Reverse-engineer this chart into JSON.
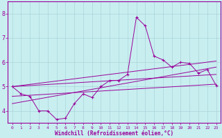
{
  "xlabel": "Windchill (Refroidissement éolien,°C)",
  "background_color": "#c8eef0",
  "grid_color": "#aad4d8",
  "line_color": "#990099",
  "xlim": [
    -0.5,
    23.5
  ],
  "ylim": [
    3.5,
    8.5
  ],
  "yticks": [
    4,
    5,
    6,
    7,
    8
  ],
  "xticks": [
    0,
    1,
    2,
    3,
    4,
    5,
    6,
    7,
    8,
    9,
    10,
    11,
    12,
    13,
    14,
    15,
    16,
    17,
    18,
    19,
    20,
    21,
    22,
    23
  ],
  "series": {
    "main": {
      "x": [
        0,
        1,
        2,
        3,
        4,
        5,
        6,
        7,
        8,
        9,
        10,
        11,
        12,
        13,
        14,
        15,
        16,
        17,
        18,
        19,
        20,
        21,
        22,
        23
      ],
      "y": [
        5.0,
        4.7,
        4.6,
        4.0,
        4.0,
        3.65,
        3.7,
        4.3,
        4.7,
        4.55,
        5.0,
        5.25,
        5.25,
        5.5,
        7.85,
        7.5,
        6.25,
        6.1,
        5.8,
        6.0,
        5.95,
        5.55,
        5.7,
        5.05
      ]
    },
    "line1": {
      "x": [
        0,
        23
      ],
      "y": [
        5.0,
        6.05
      ]
    },
    "line2": {
      "x": [
        0,
        23
      ],
      "y": [
        5.0,
        5.5
      ]
    },
    "line3": {
      "x": [
        0,
        23
      ],
      "y": [
        4.3,
        5.8
      ]
    },
    "line4": {
      "x": [
        0,
        23
      ],
      "y": [
        4.6,
        5.1
      ]
    }
  },
  "xlabel_fontsize": 5.5,
  "tick_fontsize_x": 4.5,
  "tick_fontsize_y": 6.0
}
